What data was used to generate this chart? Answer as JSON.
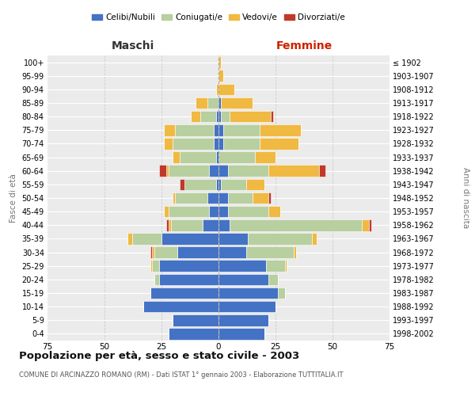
{
  "age_groups": [
    "0-4",
    "5-9",
    "10-14",
    "15-19",
    "20-24",
    "25-29",
    "30-34",
    "35-39",
    "40-44",
    "45-49",
    "50-54",
    "55-59",
    "60-64",
    "65-69",
    "70-74",
    "75-79",
    "80-84",
    "85-89",
    "90-94",
    "95-99",
    "100+"
  ],
  "birth_years": [
    "1998-2002",
    "1993-1997",
    "1988-1992",
    "1983-1987",
    "1978-1982",
    "1973-1977",
    "1968-1972",
    "1963-1967",
    "1958-1962",
    "1953-1957",
    "1948-1952",
    "1943-1947",
    "1938-1942",
    "1933-1937",
    "1928-1932",
    "1923-1927",
    "1918-1922",
    "1913-1917",
    "1908-1912",
    "1903-1907",
    "≤ 1902"
  ],
  "male_celibe": [
    22,
    20,
    33,
    30,
    26,
    26,
    18,
    25,
    7,
    4,
    5,
    1,
    4,
    1,
    2,
    2,
    1,
    0,
    0,
    0,
    0
  ],
  "male_coniugato": [
    0,
    0,
    0,
    0,
    2,
    3,
    10,
    13,
    14,
    18,
    14,
    14,
    18,
    16,
    18,
    17,
    7,
    5,
    0,
    0,
    0
  ],
  "male_vedovo": [
    0,
    0,
    0,
    0,
    0,
    1,
    1,
    2,
    1,
    2,
    1,
    0,
    1,
    3,
    4,
    5,
    4,
    5,
    1,
    0,
    0
  ],
  "male_divorziato": [
    0,
    0,
    0,
    0,
    0,
    0,
    1,
    0,
    1,
    0,
    0,
    2,
    3,
    0,
    0,
    0,
    0,
    0,
    0,
    0,
    0
  ],
  "female_celibe": [
    20,
    22,
    25,
    26,
    22,
    21,
    12,
    13,
    5,
    4,
    4,
    1,
    4,
    0,
    2,
    2,
    1,
    1,
    0,
    0,
    0
  ],
  "female_coniugato": [
    0,
    0,
    0,
    3,
    4,
    8,
    21,
    28,
    58,
    18,
    11,
    11,
    18,
    16,
    16,
    16,
    4,
    0,
    0,
    0,
    0
  ],
  "female_vedovo": [
    0,
    0,
    0,
    0,
    0,
    1,
    1,
    2,
    3,
    5,
    7,
    8,
    22,
    9,
    17,
    18,
    18,
    14,
    7,
    2,
    1
  ],
  "female_divorziato": [
    0,
    0,
    0,
    0,
    0,
    0,
    0,
    0,
    1,
    0,
    1,
    0,
    3,
    0,
    0,
    0,
    1,
    0,
    0,
    0,
    0
  ],
  "color_celibe": "#4472c4",
  "color_coniugato": "#b8cfa0",
  "color_vedovo": "#f0b942",
  "color_divorziato": "#c0392b",
  "title": "Popolazione per età, sesso e stato civile - 2003",
  "subtitle": "COMUNE DI ARCINAZZO ROMANO (RM) - Dati ISTAT 1° gennaio 2003 - Elaborazione TUTTITALIA.IT",
  "xlabel_left": "Maschi",
  "xlabel_right": "Femmine",
  "ylabel_left": "Fasce di età",
  "ylabel_right": "Anni di nascita",
  "xlim": 75,
  "bg_color": "#ffffff",
  "plot_bg_color": "#ebebeb",
  "grid_color": "#ffffff"
}
